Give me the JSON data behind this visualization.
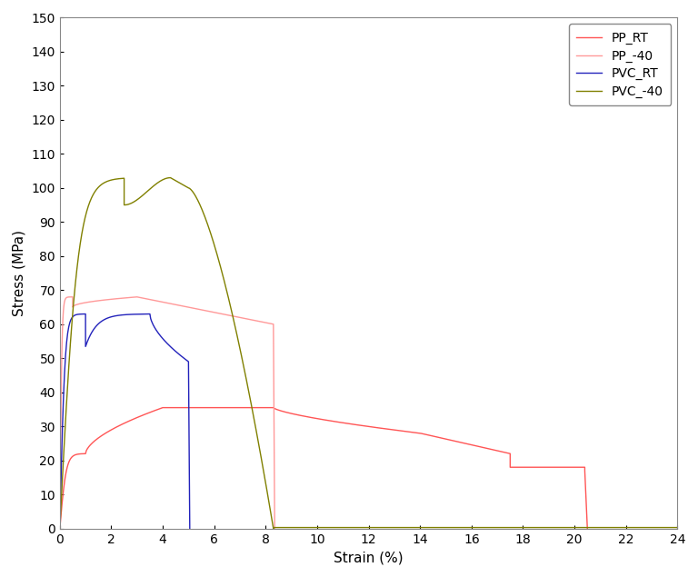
{
  "title": "",
  "xlabel": "Strain (%)",
  "ylabel": "Stress (MPa)",
  "xlim": [
    0,
    24
  ],
  "ylim": [
    0,
    150
  ],
  "xticks": [
    0,
    2,
    4,
    6,
    8,
    10,
    12,
    14,
    16,
    18,
    20,
    22,
    24
  ],
  "yticks": [
    0,
    10,
    20,
    30,
    40,
    50,
    60,
    70,
    80,
    90,
    100,
    110,
    120,
    130,
    140,
    150
  ],
  "legend_labels": [
    "PP_RT",
    "PP_-40",
    "PVC_RT",
    "PVC_-40"
  ],
  "colors": {
    "PP_RT": "#FF5555",
    "PP_-40": "#FF9999",
    "PVC_RT": "#2222BB",
    "PVC_-40": "#808000"
  },
  "background_color": "#ffffff",
  "figsize": [
    7.68,
    6.35
  ],
  "dpi": 100
}
